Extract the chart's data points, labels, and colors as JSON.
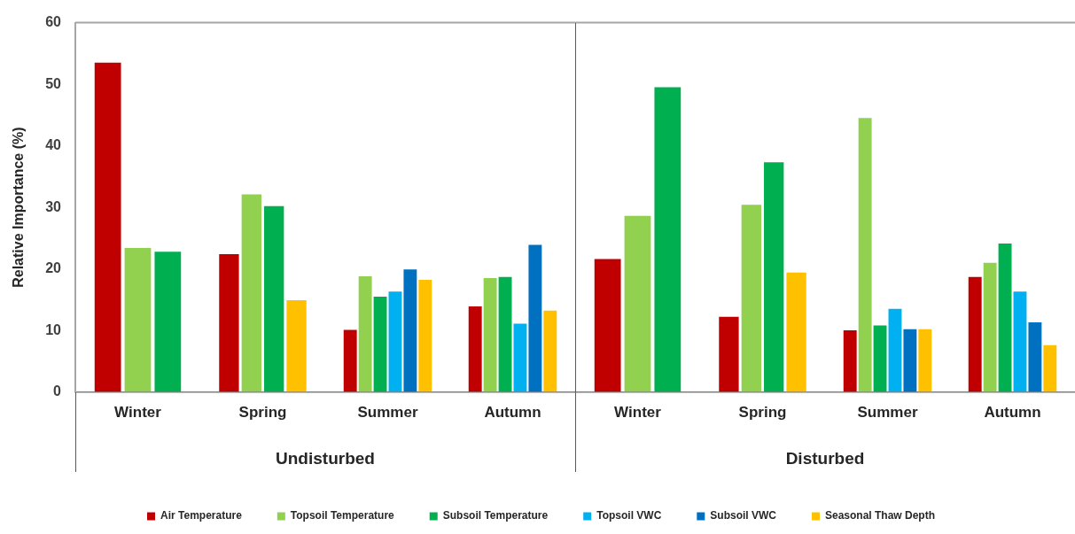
{
  "chart_data": {
    "type": "bar",
    "categories": [
      "Winter",
      "Spring",
      "Summer",
      "Autumn",
      "Winter",
      "Spring",
      "Summer",
      "Autumn"
    ],
    "ylabel": "Relative Importance (%)",
    "annotations": [
      "Undisturbed",
      "Disturbed"
    ],
    "series": [
      {
        "name": "Air Temperature",
        "color": "#c00000",
        "values": [
          53.5,
          22.4,
          10.1,
          13.9,
          21.6,
          12.2,
          10.0,
          18.7
        ]
      },
      {
        "name": "Topsoil Temperature",
        "color": "#92d050",
        "values": [
          23.4,
          32.1,
          18.8,
          18.5,
          28.6,
          30.4,
          44.5,
          21.0
        ]
      },
      {
        "name": "Subsoil Temperature",
        "color": "#00b050",
        "values": [
          22.8,
          30.2,
          15.5,
          18.7,
          49.5,
          37.3,
          10.8,
          24.1
        ]
      },
      {
        "name": "Topsoil VWC",
        "color": "#00b0f0",
        "values": [
          null,
          null,
          16.3,
          11.1,
          null,
          null,
          13.5,
          16.3
        ]
      },
      {
        "name": "Subsoil VWC",
        "color": "#0070c0",
        "values": [
          null,
          null,
          19.9,
          23.9,
          null,
          null,
          10.2,
          11.3
        ]
      },
      {
        "name": "Seasonal Thaw Depth",
        "color": "#ffc000",
        "values": [
          null,
          14.9,
          18.2,
          13.2,
          null,
          19.4,
          10.2,
          7.6
        ]
      }
    ],
    "ylim": [
      0,
      60
    ],
    "yticks": [
      0,
      10,
      20,
      30,
      40,
      50,
      60
    ],
    "grid": false,
    "legend": "bottom"
  }
}
